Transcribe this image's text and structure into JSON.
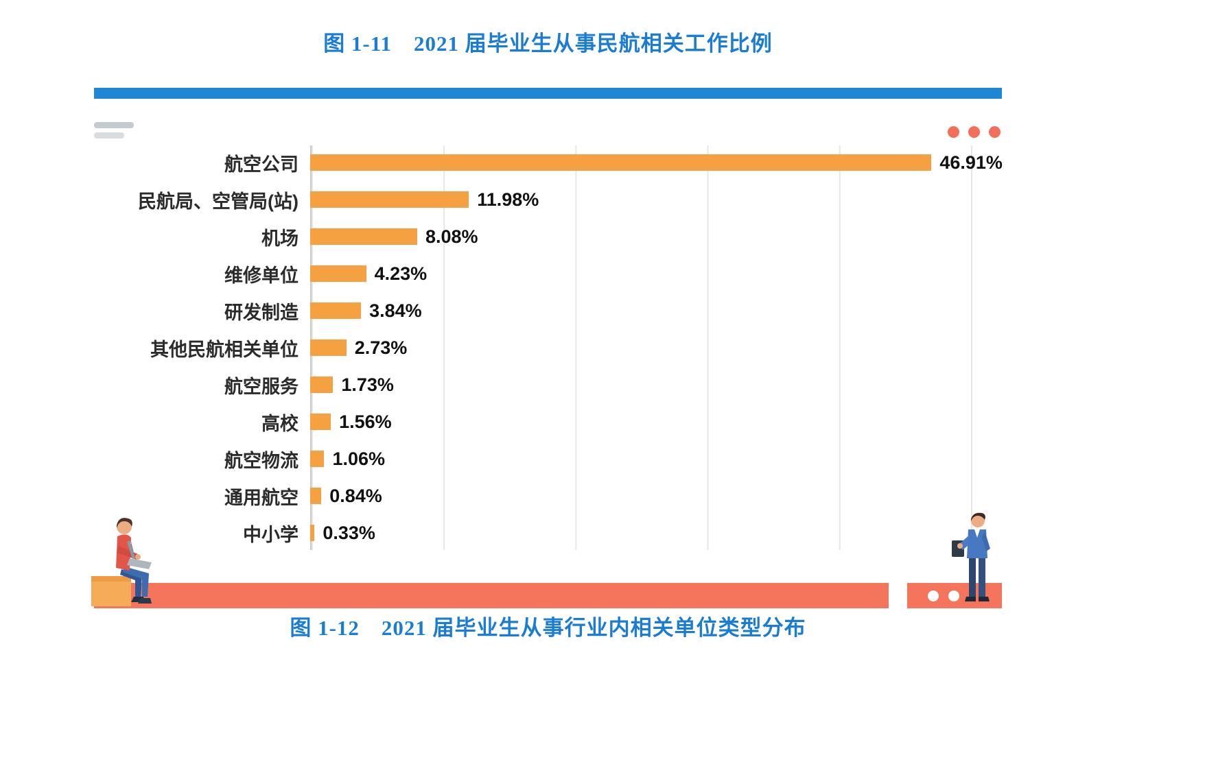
{
  "captions": {
    "top": "图 1-11　2021 届毕业生从事民航相关工作比例",
    "bottom": "图 1-12　2021 届毕业生从事行业内相关单位类型分布"
  },
  "chart_data": {
    "type": "bar",
    "orientation": "horizontal",
    "title": "2021 届毕业生从事民航相关工作比例",
    "categories": [
      "航空公司",
      "民航局、空管局(站)",
      "机场",
      "维修单位",
      "研发制造",
      "其他民航相关单位",
      "航空服务",
      "高校",
      "航空物流",
      "通用航空",
      "中小学"
    ],
    "values": [
      46.91,
      11.98,
      8.08,
      4.23,
      3.84,
      2.73,
      1.73,
      1.56,
      1.06,
      0.84,
      0.33
    ],
    "value_labels": [
      "46.91%",
      "11.98%",
      "8.08%",
      "4.23%",
      "3.84%",
      "2.73%",
      "1.73%",
      "1.56%",
      "1.06%",
      "0.84%",
      "0.33%"
    ],
    "unit": "%",
    "xlim": [
      0,
      50
    ],
    "gridline_interval": 10,
    "grid": true,
    "legend": false,
    "bar_color": "#F5A142"
  },
  "style": {
    "accent_blue": "#1E87D5",
    "caption_color": "#1A7CD2",
    "strip_color": "#F4745C",
    "dot_color": "#F2705B",
    "grid_color": "#E6E6E6"
  },
  "decorations": {
    "menu_icon": "menu-lines-icon",
    "ellipsis_icon": "ellipsis-dots-icon",
    "ellipsis_dots_count": 3,
    "pagination_dots_count": 2
  }
}
